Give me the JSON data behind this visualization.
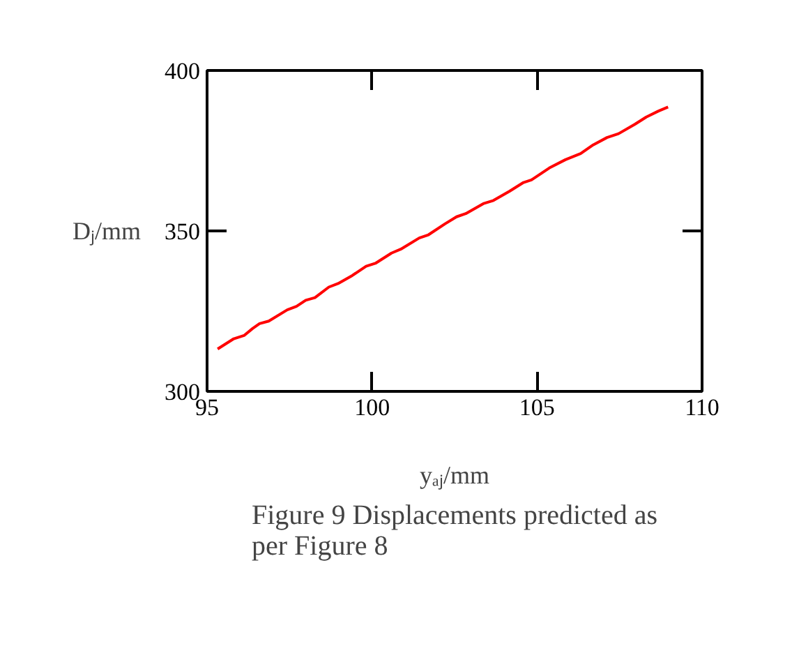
{
  "chart_data": {
    "type": "line",
    "title": "Figure 9 Displacements predicted as per Figure 8",
    "xlabel": "yₐⱼ/mm",
    "ylabel": "Dⱼ/mm",
    "xlim": [
      95,
      110
    ],
    "ylim": [
      300,
      400
    ],
    "xticks": [
      95,
      100,
      105,
      110
    ],
    "yticks": [
      300,
      350,
      400
    ],
    "grid": false,
    "line_style": "solid",
    "series": [
      {
        "color": "#ff0000",
        "x": [
          95.32,
          95.81,
          96.12,
          96.38,
          96.59,
          96.87,
          97.43,
          97.71,
          97.99,
          98.27,
          98.69,
          98.97,
          99.4,
          99.82,
          100.1,
          100.59,
          100.87,
          101.43,
          101.71,
          102.21,
          102.56,
          102.84,
          103.37,
          103.68,
          104.17,
          104.59,
          104.83,
          105.37,
          105.86,
          106.32,
          106.7,
          107.12,
          107.47,
          107.96,
          108.31,
          108.67,
          108.97
        ],
        "values": [
          313.2,
          316.4,
          317.4,
          319.6,
          321.1,
          321.9,
          325.4,
          326.5,
          328.4,
          329.2,
          332.5,
          333.6,
          336.1,
          339.0,
          339.9,
          343.1,
          344.3,
          347.8,
          348.8,
          352.2,
          354.4,
          355.4,
          358.5,
          359.5,
          362.4,
          365.1,
          365.9,
          369.6,
          372.2,
          374.1,
          376.8,
          379.1,
          380.3,
          383.2,
          385.5,
          387.3,
          388.6
        ]
      }
    ]
  }
}
